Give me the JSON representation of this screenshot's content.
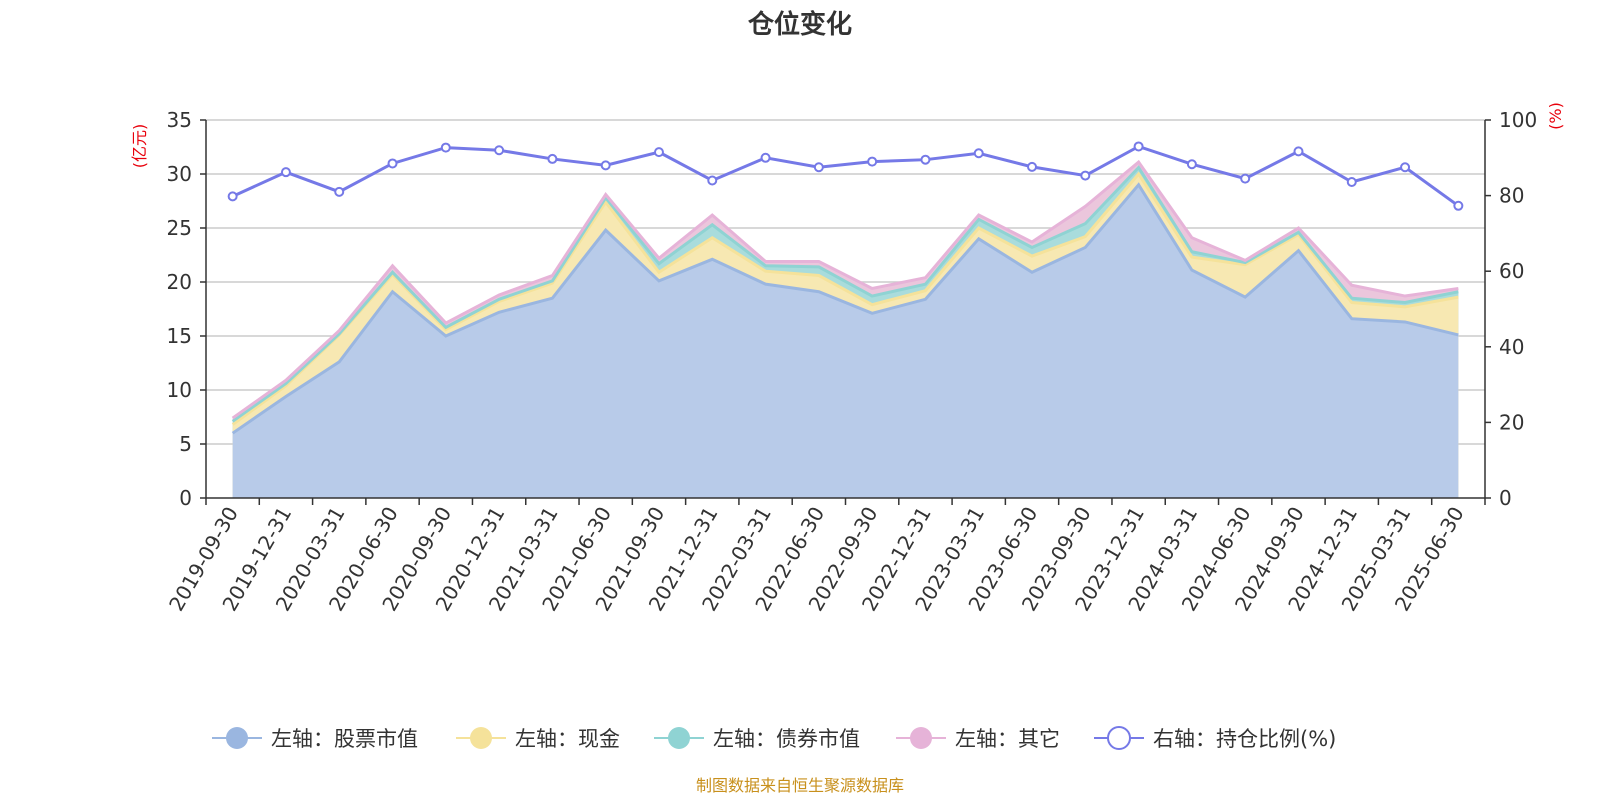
{
  "chart_data": {
    "type": "area",
    "title": "仓位变化",
    "left_unit": "(亿元)",
    "right_unit": "(%)",
    "categories": [
      "2019-09-30",
      "2019-12-31",
      "2020-03-31",
      "2020-06-30",
      "2020-09-30",
      "2020-12-31",
      "2021-03-31",
      "2021-06-30",
      "2021-09-30",
      "2021-12-31",
      "2022-03-31",
      "2022-06-30",
      "2022-09-30",
      "2022-12-31",
      "2023-03-31",
      "2023-06-30",
      "2023-09-30",
      "2023-12-31",
      "2024-03-31",
      "2024-06-30",
      "2024-09-30",
      "2024-12-31",
      "2025-03-31",
      "2025-06-30"
    ],
    "left_axis": {
      "min": 0,
      "max": 35,
      "interval": 5
    },
    "right_axis": {
      "min": 0,
      "max": 100,
      "interval": 20
    },
    "stacked_series": [
      {
        "name": "左轴：股票市值",
        "color": "#9ab6e0",
        "fill": "#b8cbe9",
        "values": [
          6.0,
          9.4,
          12.6,
          19.1,
          15.0,
          17.2,
          18.5,
          24.8,
          20.1,
          22.1,
          19.8,
          19.1,
          17.1,
          18.4,
          24.0,
          20.9,
          23.2,
          29.0,
          21.1,
          18.6,
          22.9,
          16.6,
          16.3,
          15.1
        ]
      },
      {
        "name": "左轴：现金",
        "color": "#f5e29a",
        "fill": "#f7e8b2",
        "values": [
          0.8,
          1.0,
          2.5,
          1.6,
          0.6,
          1.0,
          1.4,
          2.6,
          0.8,
          2.0,
          1.2,
          1.5,
          0.8,
          0.8,
          1.0,
          1.5,
          1.0,
          1.0,
          1.2,
          3.0,
          1.5,
          1.5,
          1.4,
          3.5
        ]
      },
      {
        "name": "左轴：债券市值",
        "color": "#8fd3d3",
        "fill": "#a9dcdc",
        "values": [
          0.3,
          0.2,
          0.1,
          0.2,
          0.2,
          0.2,
          0.2,
          0.4,
          0.8,
          1.2,
          0.5,
          0.8,
          0.8,
          0.6,
          0.8,
          0.8,
          1.2,
          0.6,
          0.5,
          0.2,
          0.2,
          0.4,
          0.4,
          0.5
        ]
      },
      {
        "name": "左轴：其它",
        "color": "#e6b3d8",
        "fill": "#ebc6dc",
        "values": [
          0.3,
          0.3,
          0.3,
          0.6,
          0.4,
          0.4,
          0.5,
          0.3,
          0.5,
          0.9,
          0.4,
          0.5,
          0.7,
          0.6,
          0.4,
          0.5,
          1.6,
          0.5,
          1.3,
          0.2,
          0.4,
          1.2,
          0.6,
          0.3
        ]
      }
    ],
    "line_series": {
      "name": "右轴：持仓比例(%)",
      "color": "#7579e7",
      "values": [
        79.8,
        86.2,
        81.0,
        88.5,
        92.7,
        92.0,
        89.7,
        88.0,
        91.5,
        84.0,
        90.0,
        87.5,
        89.0,
        89.5,
        91.2,
        87.6,
        85.3,
        93.0,
        88.3,
        84.5,
        91.7,
        83.6,
        87.5,
        77.3
      ]
    },
    "grid": true,
    "legend_position": "bottom"
  },
  "source_note": "制图数据来自恒生聚源数据库"
}
